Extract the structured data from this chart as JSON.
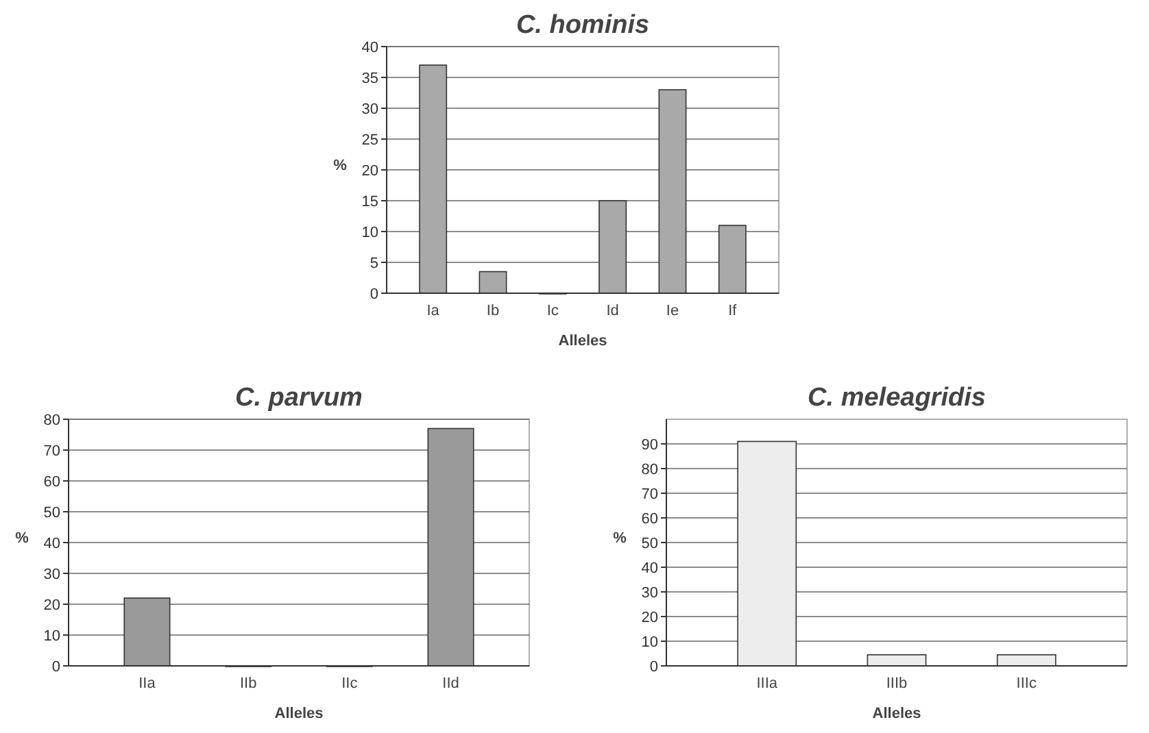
{
  "chart_data": [
    {
      "type": "bar",
      "title": "C. hominis",
      "xlabel": "Alleles",
      "ylabel": "%",
      "categories": [
        "Ia",
        "Ib",
        "Ic",
        "Id",
        "Ie",
        "If"
      ],
      "values": [
        37,
        3.5,
        0,
        15,
        33,
        11
      ],
      "color": "#a9a9a9",
      "ylim": [
        0,
        40
      ],
      "yticks": [
        0,
        5,
        10,
        15,
        20,
        25,
        30,
        35,
        40
      ],
      "grid": "y"
    },
    {
      "type": "bar",
      "title": "C. parvum",
      "xlabel": "Alleles",
      "ylabel": "%",
      "categories": [
        "IIa",
        "IIb",
        "IIc",
        "IId"
      ],
      "values": [
        22,
        0,
        0,
        77
      ],
      "color": "#9a9a9a",
      "ylim": [
        0,
        80
      ],
      "yticks": [
        0,
        10,
        20,
        30,
        40,
        50,
        60,
        70,
        80
      ],
      "grid": "y"
    },
    {
      "type": "bar",
      "title": "C. meleagridis",
      "xlabel": "Alleles",
      "ylabel": "%",
      "categories": [
        "IIIa",
        "IIIb",
        "IIIc"
      ],
      "values": [
        91,
        4.5,
        4.5
      ],
      "colors": [
        "#ededed",
        "#ededed",
        "#ededed"
      ],
      "ylim": [
        0,
        100
      ],
      "yticks": [
        0,
        10,
        20,
        30,
        40,
        50,
        60,
        70,
        80,
        90
      ],
      "grid": "y"
    }
  ]
}
